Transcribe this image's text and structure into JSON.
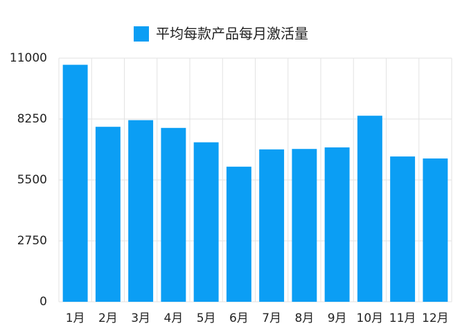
{
  "chart_data": {
    "type": "bar",
    "series": [
      {
        "name": "平均每款产品每月激活量",
        "color": "#0b9ef4",
        "values": [
          10700,
          7900,
          8200,
          7850,
          7200,
          6100,
          6880,
          6900,
          6970,
          8400,
          6560,
          6470
        ]
      }
    ],
    "categories": [
      "1月",
      "2月",
      "3月",
      "4月",
      "5月",
      "6月",
      "7月",
      "8月",
      "9月",
      "10月",
      "11月",
      "12月"
    ],
    "ylim": [
      0,
      11000
    ],
    "yticks": [
      0,
      2750,
      5500,
      8250,
      11000
    ],
    "grid": true
  }
}
